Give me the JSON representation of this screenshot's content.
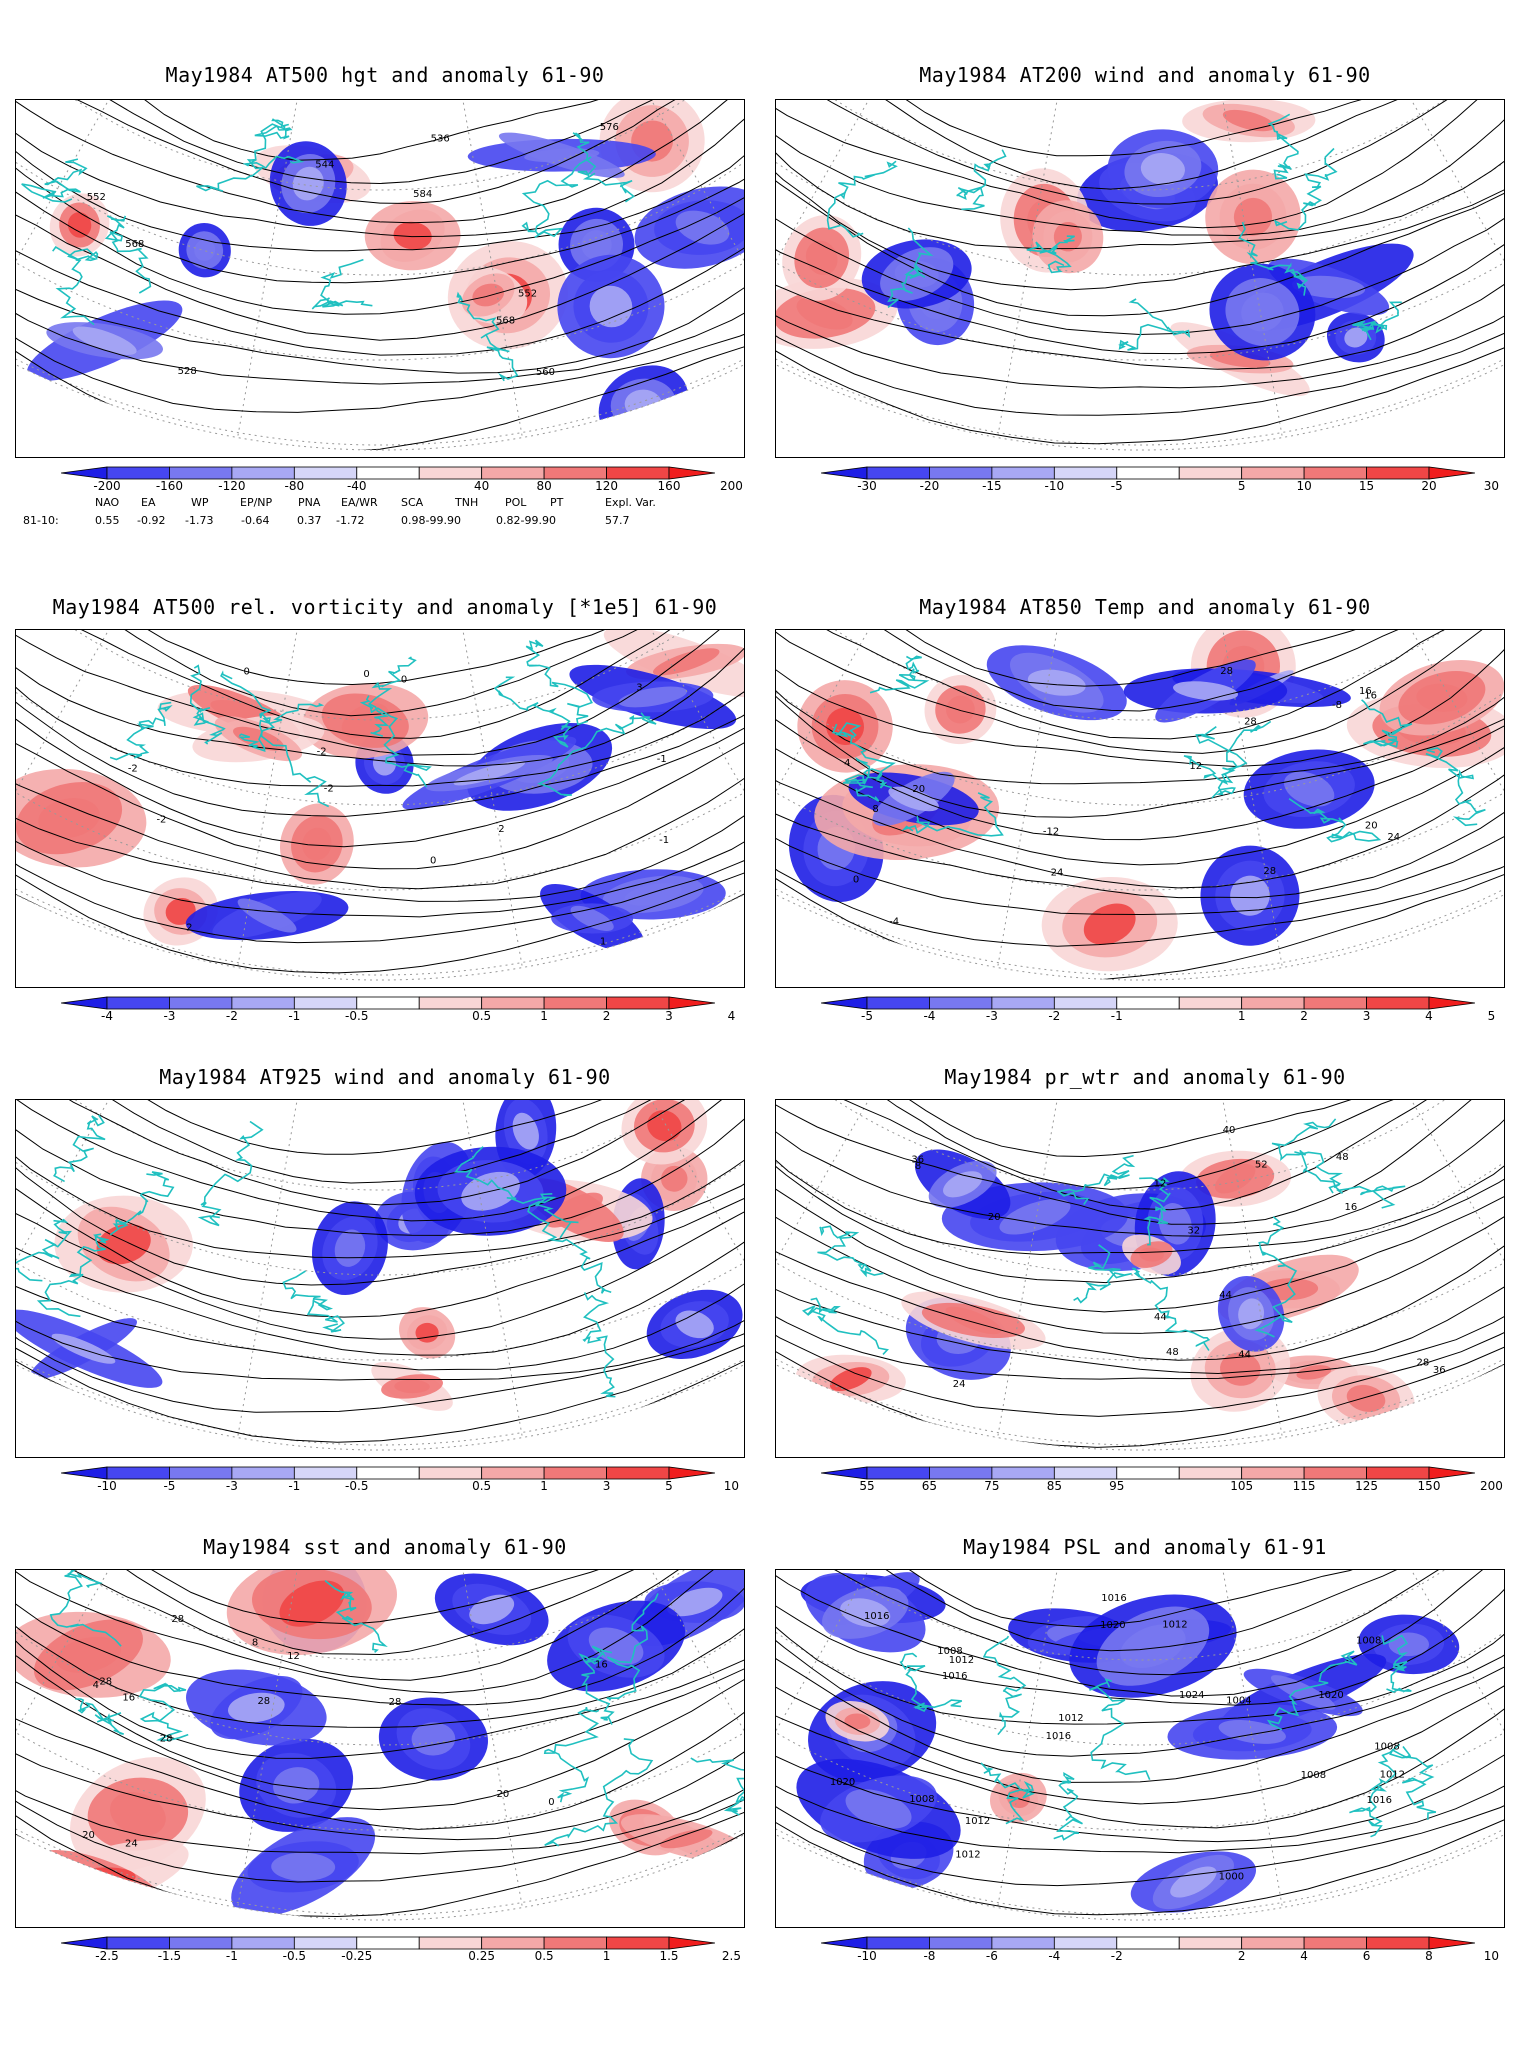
{
  "panels": [
    {
      "title": "May1984 AT500 hgt and anomaly 61-90",
      "contour_labels": [
        "528",
        "536",
        "544",
        "552",
        "552",
        "560",
        "568",
        "576",
        "584",
        "568"
      ],
      "colorbar": {
        "labels": [
          "-200",
          "-160",
          "-120",
          "-80",
          "-40",
          "40",
          "80",
          "120",
          "160",
          "200"
        ]
      }
    },
    {
      "title": "May1984 AT200 wind and anomaly 61-90",
      "contour_labels": [],
      "colorbar": {
        "labels": [
          "-30",
          "-20",
          "-15",
          "-10",
          "-5",
          "5",
          "10",
          "15",
          "20",
          "30"
        ]
      }
    },
    {
      "title": "May1984 AT500 rel. vorticity and anomaly [*1e5] 61-90",
      "contour_labels": [
        "-1",
        "-2",
        "1",
        "2",
        "3",
        "-1",
        "-2",
        "0",
        "0",
        "0",
        "0",
        "-2",
        "2",
        "-2"
      ],
      "colorbar": {
        "labels": [
          "-4",
          "-3",
          "-2",
          "-1",
          "-0.5",
          "0.5",
          "1",
          "2",
          "3",
          "4"
        ]
      }
    },
    {
      "title": "May1984 AT850 Temp and anomaly 61-90",
      "contour_labels": [
        "-12",
        "-8",
        "-4",
        "0",
        "4",
        "8",
        "12",
        "16",
        "20",
        "24",
        "28",
        "28",
        "28",
        "20",
        "24",
        "16"
      ],
      "colorbar": {
        "labels": [
          "-5",
          "-4",
          "-3",
          "-2",
          "-1",
          "1",
          "2",
          "3",
          "4",
          "5"
        ]
      }
    },
    {
      "title": "May1984 AT925 wind and anomaly 61-90",
      "contour_labels": [],
      "colorbar": {
        "labels": [
          "-10",
          "-5",
          "-3",
          "-1",
          "-0.5",
          "0.5",
          "1",
          "3",
          "5",
          "10"
        ]
      }
    },
    {
      "title": "May1984 pr_wtr and anomaly 61-90",
      "contour_labels": [
        "36",
        "44",
        "48",
        "52",
        "24",
        "20",
        "32",
        "12",
        "16",
        "8",
        "28",
        "40",
        "44",
        "48",
        "36",
        "44"
      ],
      "colorbar": {
        "labels": [
          "55",
          "65",
          "75",
          "85",
          "95",
          "105",
          "115",
          "125",
          "150",
          "200"
        ]
      }
    },
    {
      "title": "May1984 sst and anomaly 61-90",
      "contour_labels": [
        "28",
        "28",
        "0",
        "4",
        "8",
        "12",
        "16",
        "16",
        "20",
        "20",
        "24",
        "28",
        "28",
        "28"
      ],
      "colorbar": {
        "labels": [
          "-2.5",
          "-1.5",
          "-1",
          "-0.5",
          "-0.25",
          "0.25",
          "0.5",
          "1",
          "1.5",
          "2.5"
        ]
      }
    },
    {
      "title": "May1984 PSL and anomaly 61-91",
      "contour_labels": [
        "1012",
        "1016",
        "1020",
        "1016",
        "1012",
        "1020",
        "1024",
        "1016",
        "1012",
        "1008",
        "1012",
        "1000",
        "1004",
        "1008",
        "1016",
        "1008",
        "1012",
        "1008",
        "1020",
        "1016",
        "1012",
        "1008"
      ],
      "colorbar": {
        "labels": [
          "-10",
          "-8",
          "-6",
          "-4",
          "-2",
          "2",
          "4",
          "6",
          "8",
          "10"
        ]
      }
    }
  ],
  "indices": {
    "header": [
      "NAO",
      "EA",
      "WP",
      "EP/NP",
      "PNA",
      "EA/WR",
      "SCA",
      "TNH",
      "POL",
      "PT",
      "Expl. Var."
    ],
    "row_label": "81-10:",
    "values": [
      "0.55",
      "-0.92",
      "-1.73",
      "-0.64",
      "0.37",
      "-1.72",
      "0.98-99.90",
      "0.82-99.90",
      "57.7"
    ]
  },
  "colors": {
    "coast": "#20c0c0",
    "neg": [
      "#1e1ee6",
      "#4646f0",
      "#7878f0",
      "#a8a8f4",
      "#d6d6f8"
    ],
    "pos": [
      "#f8d6d6",
      "#f4a8a8",
      "#f07878",
      "#f04646",
      "#f01e1e"
    ],
    "contour": "#000000",
    "grid": "#999999"
  }
}
